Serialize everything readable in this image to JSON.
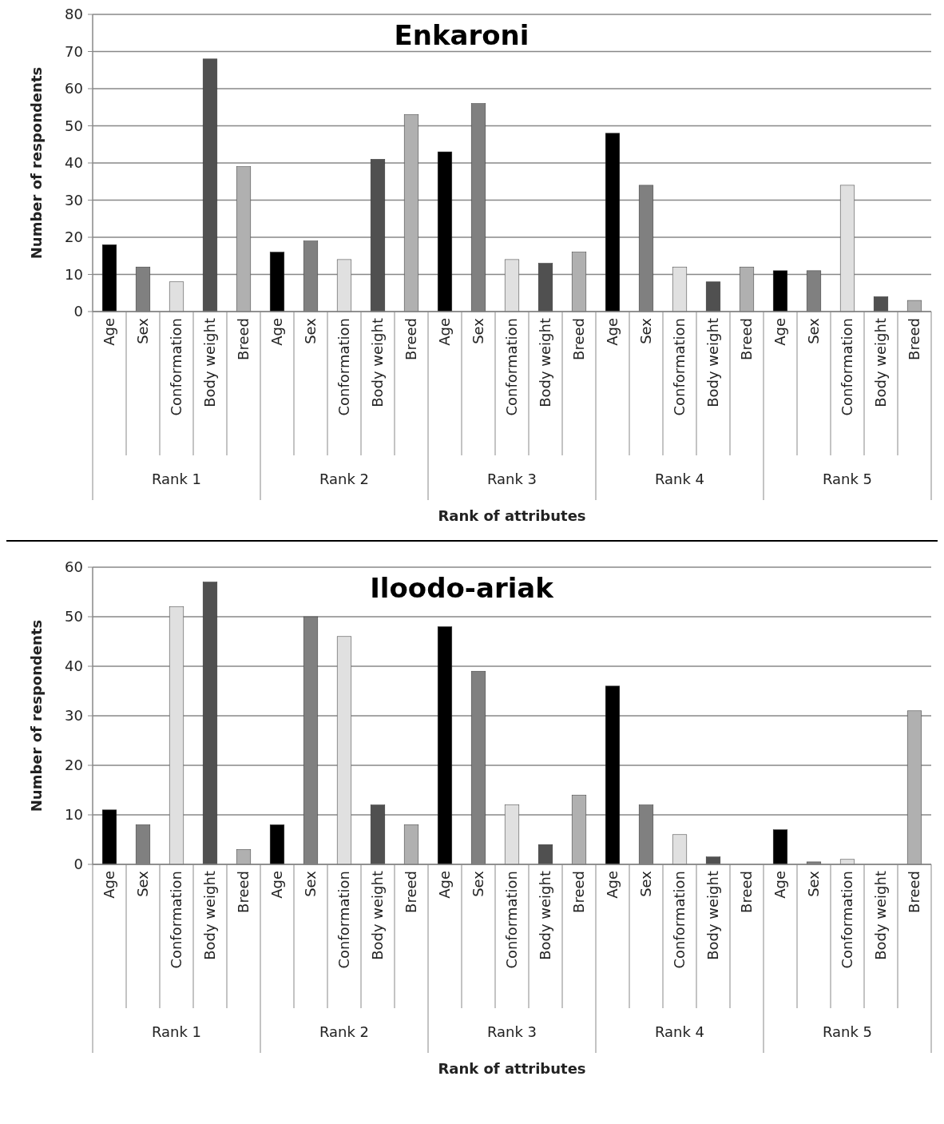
{
  "chart_data": [
    {
      "type": "bar",
      "title": "Enkaroni",
      "xlabel": "Rank of attributes",
      "ylabel": "Number of respondents",
      "categories": [
        "Age",
        "Sex",
        "Conformation",
        "Body weight",
        "Breed",
        "Age",
        "Sex",
        "Conformation",
        "Body weight",
        "Breed",
        "Age",
        "Sex",
        "Conformation",
        "Body weight",
        "Breed",
        "Age",
        "Sex",
        "Conformation",
        "Body weight",
        "Breed",
        "Age",
        "Sex",
        "Conformation",
        "Body weight",
        "Breed"
      ],
      "ylim": [
        0,
        80
      ],
      "yticks": [
        0,
        10,
        20,
        30,
        40,
        50,
        60,
        70,
        80
      ],
      "grid": "y",
      "values": [
        18,
        12,
        8,
        68,
        39,
        16,
        19,
        14,
        41,
        53,
        43,
        56,
        14,
        13,
        16,
        48,
        34,
        12,
        8,
        12,
        11,
        11,
        34,
        4,
        3
      ],
      "colors": [
        "#000000",
        "#808080",
        "#e0e0e0",
        "#505050",
        "#b0b0b0",
        "#000000",
        "#808080",
        "#e0e0e0",
        "#505050",
        "#b0b0b0",
        "#000000",
        "#808080",
        "#e0e0e0",
        "#505050",
        "#b0b0b0",
        "#000000",
        "#808080",
        "#e0e0e0",
        "#505050",
        "#b0b0b0",
        "#000000",
        "#808080",
        "#e0e0e0",
        "#505050",
        "#b0b0b0"
      ],
      "annotations": [
        "Rank 1",
        "Rank 2",
        "Rank 3",
        "Rank 4",
        "Rank 5"
      ]
    },
    {
      "type": "bar",
      "title": "Iloodo-ariak",
      "xlabel": "Rank of attributes",
      "ylabel": "Number of respondents",
      "categories": [
        "Age",
        "Sex",
        "Conformation",
        "Body weight",
        "Breed",
        "Age",
        "Sex",
        "Conformation",
        "Body weight",
        "Breed",
        "Age",
        "Sex",
        "Conformation",
        "Body weight",
        "Breed",
        "Age",
        "Sex",
        "Conformation",
        "Body weight",
        "Breed",
        "Age",
        "Sex",
        "Conformation",
        "Body weight",
        "Breed"
      ],
      "ylim": [
        0,
        60
      ],
      "yticks": [
        0,
        10,
        20,
        30,
        40,
        50,
        60
      ],
      "grid": "y",
      "values": [
        11,
        8,
        52,
        57,
        3,
        8,
        50,
        46,
        12,
        8,
        48,
        39,
        12,
        4,
        14,
        36,
        12,
        6,
        1.5,
        0,
        7,
        0.5,
        1,
        0,
        31
      ],
      "colors": [
        "#000000",
        "#808080",
        "#e0e0e0",
        "#505050",
        "#b0b0b0",
        "#000000",
        "#808080",
        "#e0e0e0",
        "#505050",
        "#b0b0b0",
        "#000000",
        "#808080",
        "#e0e0e0",
        "#505050",
        "#b0b0b0",
        "#000000",
        "#808080",
        "#e0e0e0",
        "#505050",
        "#b0b0b0",
        "#000000",
        "#808080",
        "#e0e0e0",
        "#505050",
        "#b0b0b0"
      ],
      "annotations": [
        "Rank 1",
        "Rank 2",
        "Rank 3",
        "Rank 4",
        "Rank 5"
      ]
    }
  ]
}
